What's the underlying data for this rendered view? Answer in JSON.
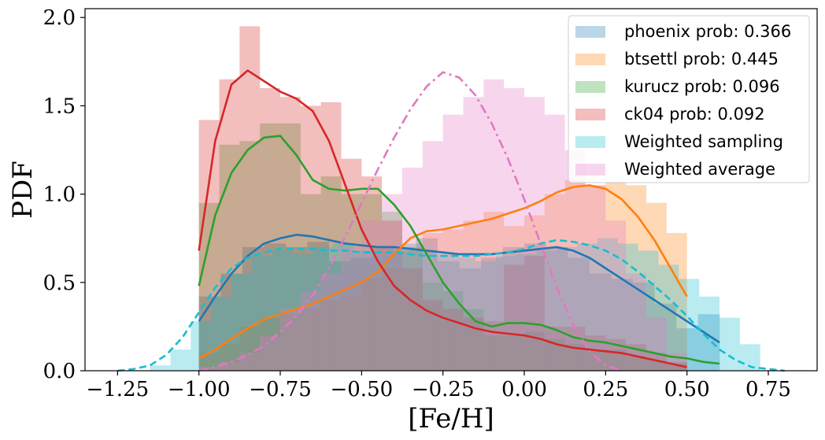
{
  "chart_data": {
    "type": "histogram+kde",
    "xlabel": "[Fe/H]",
    "ylabel": "PDF",
    "xlim": [
      -1.35,
      0.9
    ],
    "ylim": [
      0,
      2.05
    ],
    "xticks": [
      -1.25,
      -1.0,
      -0.75,
      -0.5,
      -0.25,
      0.0,
      0.25,
      0.5,
      0.75
    ],
    "xtick_labels": [
      "−1.25",
      "−1.00",
      "−0.75",
      "−0.50",
      "−0.25",
      "0.00",
      "0.25",
      "0.50",
      "0.75"
    ],
    "yticks": [
      0.0,
      0.5,
      1.0,
      1.5,
      2.0
    ],
    "ytick_labels": [
      "0.0",
      "0.5",
      "1.0",
      "1.5",
      "2.0"
    ],
    "grid": false,
    "legend_position": "top-right",
    "series": [
      {
        "name": "phoenix prob: 0.366",
        "color": "#1f77b4",
        "bin_start": -1.0,
        "bin_width": 0.0667,
        "hist": [
          0.42,
          0.55,
          0.7,
          0.72,
          0.7,
          0.73,
          0.62,
          0.64,
          0.7,
          0.68,
          0.75,
          0.62,
          0.58,
          0.64,
          0.7,
          0.72,
          0.7,
          0.64,
          0.55,
          0.52,
          0.5,
          0.38,
          0.24,
          0.32
        ],
        "kde_x": [
          -1.0,
          -0.95,
          -0.9,
          -0.85,
          -0.8,
          -0.75,
          -0.7,
          -0.65,
          -0.6,
          -0.55,
          -0.5,
          -0.45,
          -0.4,
          -0.35,
          -0.3,
          -0.25,
          -0.2,
          -0.15,
          -0.1,
          -0.05,
          0.0,
          0.05,
          0.1,
          0.15,
          0.2,
          0.25,
          0.3,
          0.35,
          0.4,
          0.45,
          0.5,
          0.55,
          0.6
        ],
        "kde_y": [
          0.28,
          0.42,
          0.55,
          0.65,
          0.72,
          0.75,
          0.77,
          0.76,
          0.74,
          0.72,
          0.71,
          0.7,
          0.7,
          0.69,
          0.68,
          0.67,
          0.66,
          0.66,
          0.66,
          0.67,
          0.68,
          0.69,
          0.7,
          0.68,
          0.64,
          0.58,
          0.52,
          0.46,
          0.4,
          0.34,
          0.28,
          0.22,
          0.16
        ],
        "kde_style": "solid"
      },
      {
        "name": "btsettl prob: 0.445",
        "color": "#ff7f0e",
        "bin_start": -1.0,
        "bin_width": 0.0625,
        "hist": [
          0.1,
          0.15,
          0.25,
          0.3,
          0.32,
          0.35,
          0.4,
          0.42,
          0.52,
          0.58,
          0.7,
          0.78,
          0.8,
          0.85,
          0.9,
          0.82,
          0.88,
          1.0,
          1.08,
          1.05,
          1.07,
          1.05,
          0.95,
          0.78
        ],
        "kde_x": [
          -1.0,
          -0.95,
          -0.9,
          -0.85,
          -0.8,
          -0.75,
          -0.7,
          -0.65,
          -0.6,
          -0.55,
          -0.5,
          -0.45,
          -0.4,
          -0.35,
          -0.3,
          -0.25,
          -0.2,
          -0.15,
          -0.1,
          -0.05,
          0.0,
          0.05,
          0.1,
          0.15,
          0.2,
          0.25,
          0.3,
          0.35,
          0.4,
          0.45,
          0.5
        ],
        "kde_y": [
          0.07,
          0.12,
          0.18,
          0.24,
          0.29,
          0.32,
          0.35,
          0.38,
          0.42,
          0.46,
          0.5,
          0.56,
          0.66,
          0.75,
          0.79,
          0.8,
          0.82,
          0.84,
          0.86,
          0.89,
          0.92,
          0.96,
          1.01,
          1.04,
          1.05,
          1.03,
          0.97,
          0.87,
          0.74,
          0.58,
          0.42
        ],
        "kde_style": "solid"
      },
      {
        "name": "kurucz prob: 0.096",
        "color": "#2ca02c",
        "bin_start": -1.0,
        "bin_width": 0.0625,
        "hist": [
          0.95,
          1.28,
          1.3,
          1.4,
          1.4,
          1.0,
          1.1,
          1.0,
          1.0,
          0.9,
          0.72,
          0.5,
          0.45,
          0.35,
          0.2,
          0.2,
          0.22,
          0.18,
          0.15,
          0.12,
          0.12,
          0.08,
          0.06,
          0.04
        ],
        "kde_x": [
          -1.0,
          -0.95,
          -0.9,
          -0.85,
          -0.8,
          -0.75,
          -0.7,
          -0.65,
          -0.6,
          -0.55,
          -0.5,
          -0.45,
          -0.4,
          -0.35,
          -0.3,
          -0.25,
          -0.2,
          -0.15,
          -0.1,
          -0.05,
          0.0,
          0.05,
          0.1,
          0.15,
          0.2,
          0.25,
          0.3,
          0.35,
          0.4,
          0.45,
          0.5,
          0.55,
          0.6
        ],
        "kde_y": [
          0.48,
          0.88,
          1.12,
          1.25,
          1.32,
          1.33,
          1.22,
          1.08,
          1.03,
          1.02,
          1.03,
          1.03,
          0.94,
          0.82,
          0.66,
          0.5,
          0.38,
          0.28,
          0.25,
          0.27,
          0.27,
          0.26,
          0.23,
          0.19,
          0.17,
          0.16,
          0.14,
          0.12,
          0.1,
          0.08,
          0.07,
          0.05,
          0.04
        ],
        "kde_style": "solid"
      },
      {
        "name": "ck04 prob: 0.092",
        "color": "#d62728",
        "bin_start": -1.0,
        "bin_width": 0.0625,
        "hist": [
          1.42,
          1.65,
          1.95,
          1.6,
          1.55,
          1.5,
          1.52,
          1.2,
          1.1,
          0.85,
          0.58,
          0.4,
          0.35,
          0.3,
          0.28,
          0.6,
          0.65,
          0.25,
          0.25,
          0.2,
          0.18,
          0.15,
          0.1,
          0.05
        ],
        "kde_x": [
          -1.0,
          -0.95,
          -0.9,
          -0.85,
          -0.8,
          -0.75,
          -0.7,
          -0.65,
          -0.6,
          -0.55,
          -0.5,
          -0.45,
          -0.4,
          -0.35,
          -0.3,
          -0.25,
          -0.2,
          -0.15,
          -0.1,
          -0.05,
          0.0,
          0.05,
          0.1,
          0.15,
          0.2,
          0.25,
          0.3,
          0.35,
          0.4,
          0.45,
          0.5
        ],
        "kde_y": [
          0.68,
          1.3,
          1.62,
          1.7,
          1.64,
          1.58,
          1.54,
          1.47,
          1.3,
          1.05,
          0.8,
          0.62,
          0.48,
          0.4,
          0.34,
          0.3,
          0.27,
          0.24,
          0.22,
          0.21,
          0.2,
          0.18,
          0.15,
          0.13,
          0.12,
          0.11,
          0.1,
          0.08,
          0.06,
          0.04,
          0.02
        ],
        "kde_style": "solid"
      },
      {
        "name": "Weighted sampling",
        "color": "#17becf",
        "bin_start": -1.15,
        "bin_width": 0.0625,
        "hist": [
          0.03,
          0.12,
          0.28,
          0.42,
          0.55,
          0.65,
          0.68,
          0.66,
          0.7,
          0.72,
          0.68,
          0.65,
          0.7,
          0.68,
          0.66,
          0.64,
          0.62,
          0.65,
          0.66,
          0.68,
          0.7,
          0.72,
          0.75,
          0.72,
          0.68,
          0.6,
          0.52,
          0.42,
          0.3,
          0.15
        ],
        "kde_x": [
          -1.25,
          -1.2,
          -1.15,
          -1.1,
          -1.05,
          -1.0,
          -0.95,
          -0.9,
          -0.85,
          -0.8,
          -0.75,
          -0.7,
          -0.65,
          -0.6,
          -0.55,
          -0.5,
          -0.45,
          -0.4,
          -0.35,
          -0.3,
          -0.25,
          -0.2,
          -0.15,
          -0.1,
          -0.05,
          0.0,
          0.05,
          0.1,
          0.15,
          0.2,
          0.25,
          0.3,
          0.35,
          0.4,
          0.45,
          0.5,
          0.55,
          0.6,
          0.65,
          0.7,
          0.75,
          0.8
        ],
        "kde_y": [
          0.0,
          0.01,
          0.03,
          0.09,
          0.19,
          0.33,
          0.47,
          0.58,
          0.64,
          0.67,
          0.69,
          0.69,
          0.69,
          0.68,
          0.68,
          0.67,
          0.67,
          0.67,
          0.66,
          0.65,
          0.65,
          0.65,
          0.65,
          0.66,
          0.67,
          0.69,
          0.72,
          0.74,
          0.73,
          0.71,
          0.68,
          0.63,
          0.56,
          0.48,
          0.4,
          0.31,
          0.21,
          0.12,
          0.06,
          0.02,
          0.01,
          0.0
        ],
        "kde_style": "dashed"
      },
      {
        "name": "Weighted average",
        "color": "#e377c2",
        "bin_start": -1.0,
        "bin_width": 0.0625,
        "hist": [
          0.02,
          0.05,
          0.1,
          0.2,
          0.35,
          0.45,
          0.55,
          0.7,
          0.85,
          1.0,
          1.15,
          1.3,
          1.45,
          1.55,
          1.65,
          1.6,
          1.55,
          1.45,
          1.25,
          1.05,
          0.85,
          0.55,
          0.3,
          0.1
        ],
        "kde_x": [
          -1.0,
          -0.95,
          -0.9,
          -0.85,
          -0.8,
          -0.75,
          -0.7,
          -0.65,
          -0.6,
          -0.55,
          -0.5,
          -0.45,
          -0.4,
          -0.35,
          -0.3,
          -0.25,
          -0.2,
          -0.15,
          -0.1,
          -0.05,
          0.0,
          0.05,
          0.1,
          0.15,
          0.2,
          0.25,
          0.3
        ],
        "kde_y": [
          0.0,
          0.02,
          0.05,
          0.09,
          0.14,
          0.22,
          0.31,
          0.43,
          0.58,
          0.76,
          0.95,
          1.14,
          1.32,
          1.48,
          1.61,
          1.69,
          1.66,
          1.56,
          1.4,
          1.2,
          0.97,
          0.72,
          0.47,
          0.26,
          0.11,
          0.03,
          0.0
        ],
        "kde_style": "dashdot"
      }
    ]
  }
}
